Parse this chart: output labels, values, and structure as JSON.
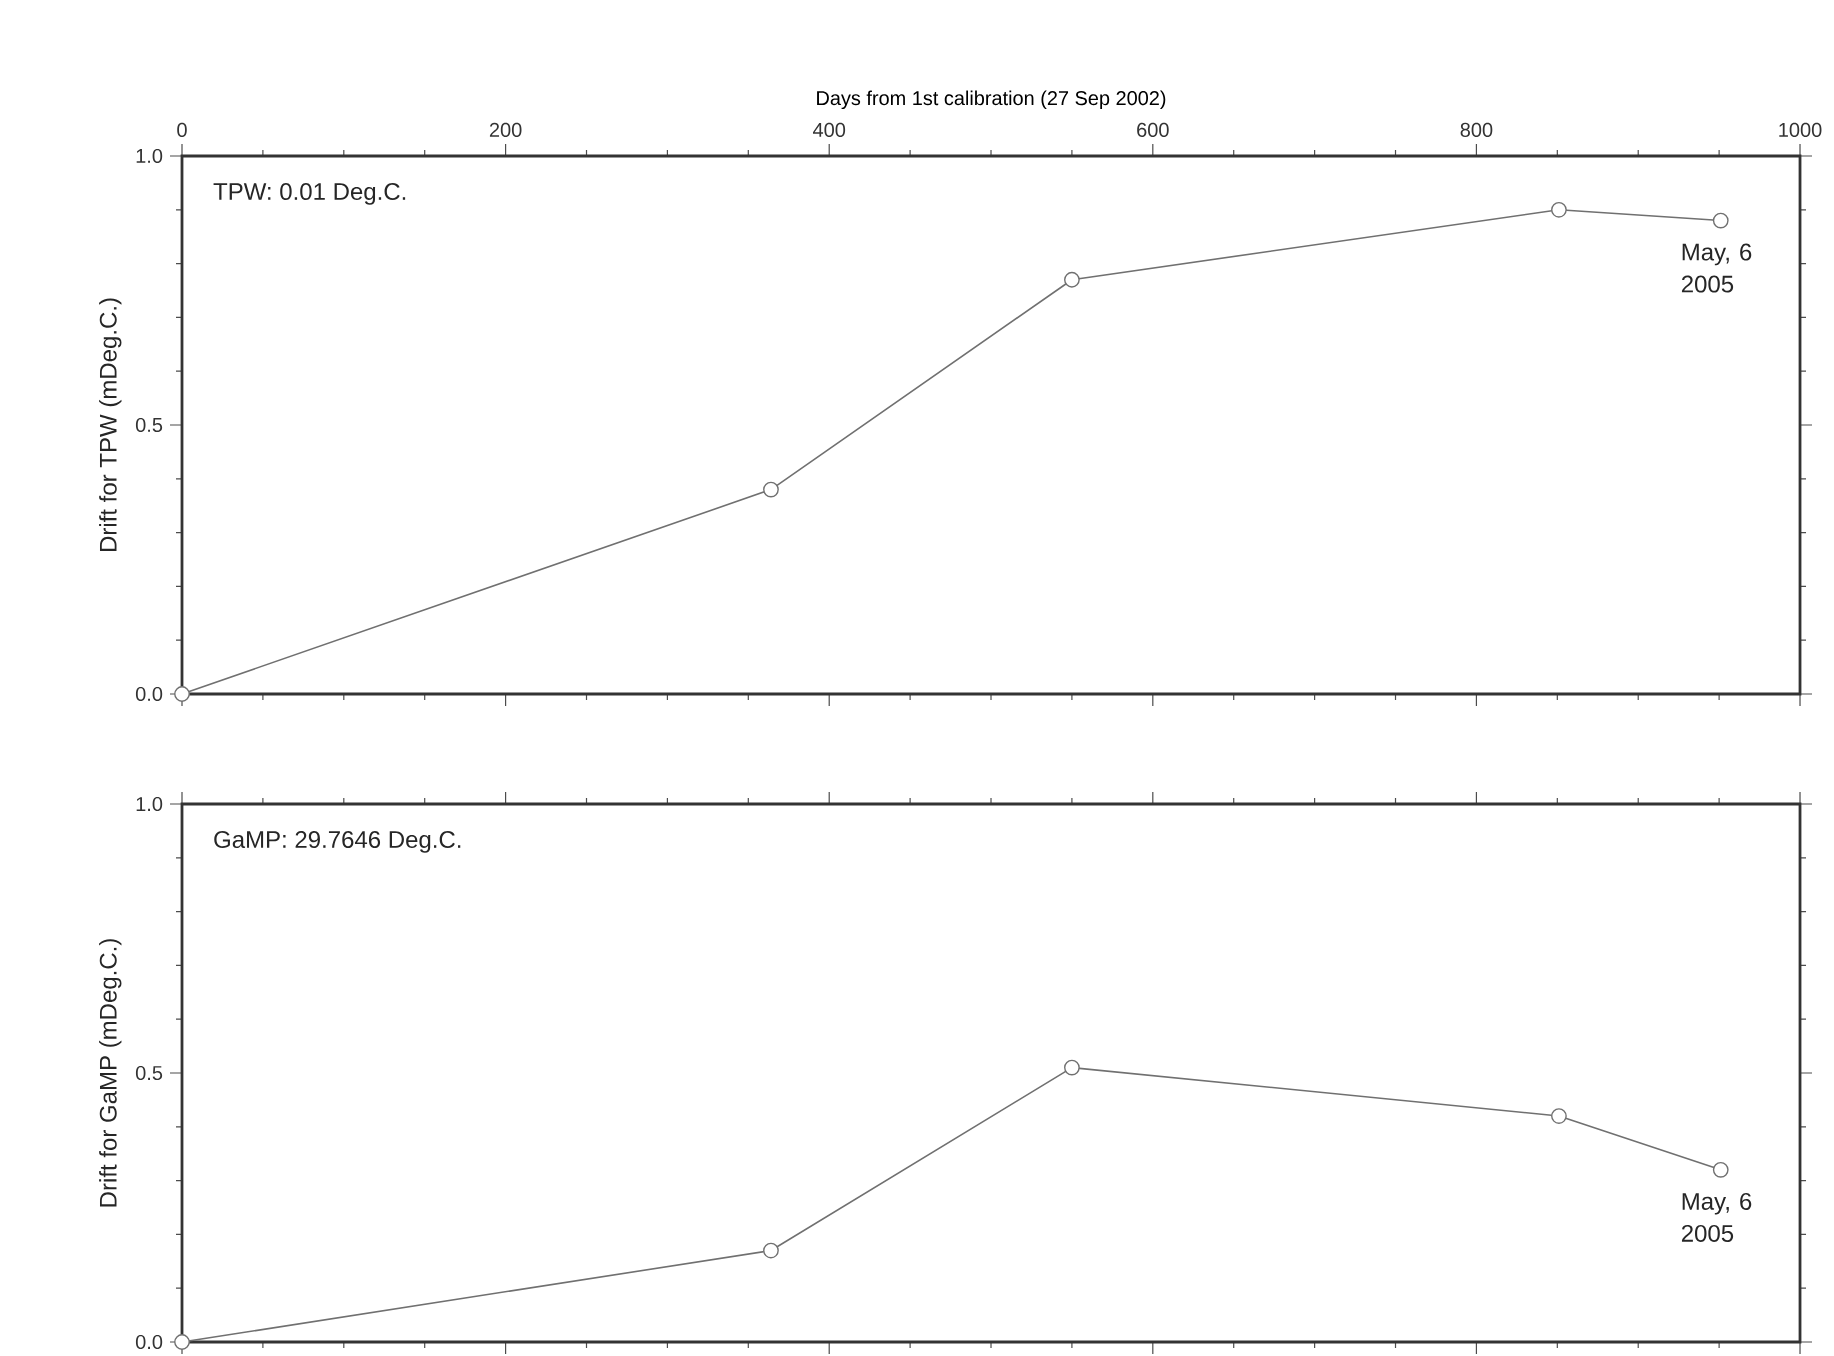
{
  "chart_data": [
    {
      "type": "line",
      "xlabel": "Days from 1st calibration (27 Sep 2002)",
      "ylabel": "Drift for TPW (mDeg.C.)",
      "xlim": [
        0,
        1000
      ],
      "xticks": [
        0,
        200,
        400,
        600,
        800,
        1000
      ],
      "ylim": [
        0,
        1.0
      ],
      "yticks": [
        {
          "value": 0,
          "label": "0.0"
        },
        {
          "value": 0.5,
          "label": "0.5"
        },
        {
          "value": 1.0,
          "label": "1.0"
        }
      ],
      "marker": "circle",
      "x": [
        0,
        364,
        550,
        851,
        951
      ],
      "series": [
        {
          "color": "#707070",
          "values": [
            0,
            0.38,
            0.77,
            0.9,
            0.88
          ]
        }
      ],
      "annotations": [
        "TPW: 0.01 Deg.C.",
        {
          "text": "May, 6 2005",
          "x": 951,
          "y": 0.88
        }
      ]
    },
    {
      "type": "line",
      "ylabel": "Drift for GaMP (mDeg.C.)",
      "xlim": [
        0,
        1000
      ],
      "xticks": [
        0,
        200,
        400,
        600,
        800,
        1000
      ],
      "ylim": [
        0,
        1.0
      ],
      "yticks": [
        {
          "value": 0,
          "label": "0.0"
        },
        {
          "value": 0.5,
          "label": "0.5"
        },
        {
          "value": 1.0,
          "label": "1.0"
        }
      ],
      "marker": "circle",
      "x": [
        0,
        364,
        550,
        851,
        951
      ],
      "tick_labels": "y",
      "series": [
        {
          "color": "#707070",
          "values": [
            0,
            0.17,
            0.51,
            0.42,
            0.32
          ]
        }
      ],
      "annotations": [
        "GaMP: 29.7646 Deg.C.",
        {
          "text": "May, 6 2005",
          "x": 951,
          "y": 0.32
        }
      ]
    }
  ]
}
